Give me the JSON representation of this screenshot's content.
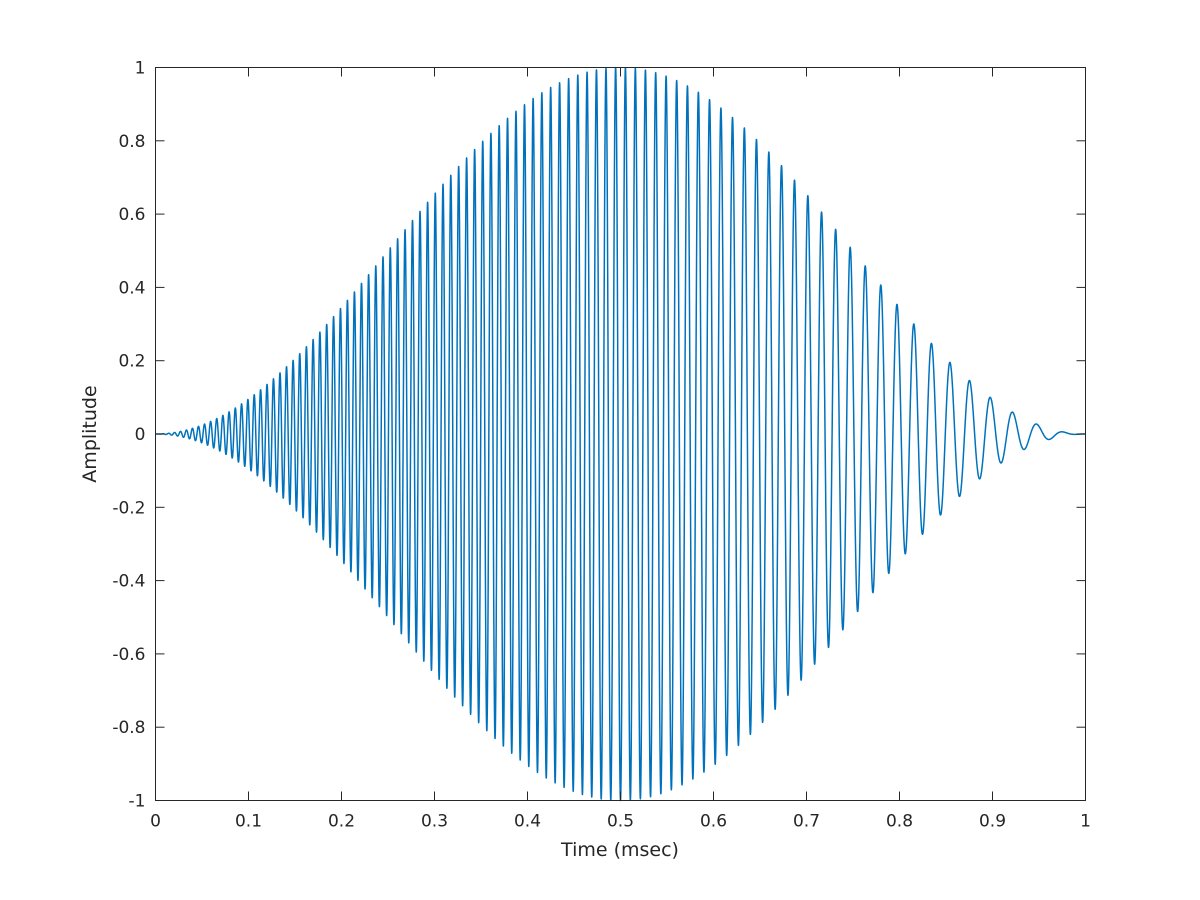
{
  "chart_data": {
    "type": "line",
    "title": "",
    "xlabel": "Time (msec)",
    "ylabel": "Amplitude",
    "xlim": [
      0,
      1
    ],
    "ylim": [
      -1,
      1
    ],
    "xticks": [
      0,
      0.1,
      0.2,
      0.3,
      0.4,
      0.5,
      0.6,
      0.7,
      0.8,
      0.9,
      1
    ],
    "xtick_labels": [
      "0",
      "0.1",
      "0.2",
      "0.3",
      "0.4",
      "0.5",
      "0.6",
      "0.7",
      "0.8",
      "0.9",
      "1"
    ],
    "yticks": [
      -1,
      -0.8,
      -0.6,
      -0.4,
      -0.2,
      0,
      0.2,
      0.4,
      0.6,
      0.8,
      1
    ],
    "ytick_labels": [
      "-1",
      "-0.8",
      "-0.6",
      "-0.4",
      "-0.2",
      "0",
      "0.2",
      "0.4",
      "0.6",
      "0.8",
      "1"
    ],
    "grid": false,
    "legend": "none",
    "series": [
      {
        "color": "#0072BD",
        "description_of_signal": {
          "envelope": "Hann-shaped, 0 at t=0 and t=1, peak amplitude 1 near t=0.5",
          "frequency": "chirp decreasing from about 160 cycles/msec at t=0 to about 30 cycles/msec at t=1",
          "points": [
            [
              0.0,
              0.0
            ],
            [
              0.1,
              0.097
            ],
            [
              0.2,
              0.345
            ],
            [
              0.3,
              0.655
            ],
            [
              0.4,
              0.905
            ],
            [
              0.5,
              1.0
            ],
            [
              0.6,
              0.905
            ],
            [
              0.7,
              0.655
            ],
            [
              0.8,
              0.345
            ],
            [
              0.9,
              0.097
            ],
            [
              1.0,
              0.0
            ]
          ]
        }
      }
    ]
  }
}
